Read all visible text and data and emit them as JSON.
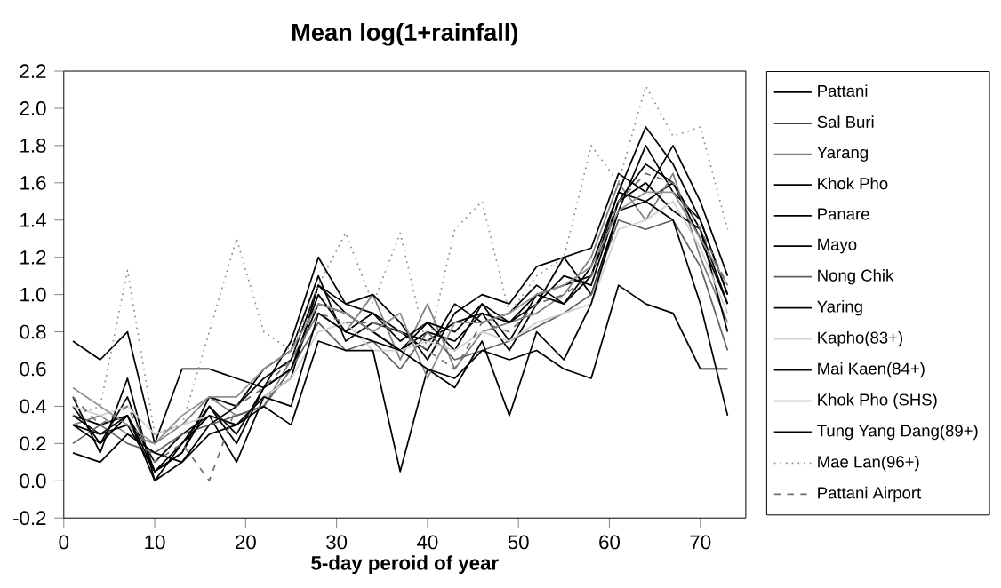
{
  "chart_data": {
    "type": "line",
    "title": "Mean log(1+rainfall)",
    "xlabel": "5-day peroid of year",
    "xlim": [
      0,
      75
    ],
    "xticks": [
      0,
      10,
      20,
      30,
      40,
      50,
      60,
      70
    ],
    "ylim": [
      -0.2,
      2.2
    ],
    "yticks": [
      {
        "value": -0.2,
        "label": "-0.2"
      },
      {
        "value": 0,
        "label": "0.0"
      },
      {
        "value": 0.2,
        "label": "0.2"
      },
      {
        "value": 0.4,
        "label": "0.4"
      },
      {
        "value": 0.6,
        "label": "0.6"
      },
      {
        "value": 0.8,
        "label": "0.8"
      },
      {
        "value": 1.0,
        "label": "1.0"
      },
      {
        "value": 1.2,
        "label": "1.2"
      },
      {
        "value": 1.4,
        "label": "1.4"
      },
      {
        "value": 1.6,
        "label": "1.6"
      },
      {
        "value": 1.8,
        "label": "1.8"
      },
      {
        "value": 2.0,
        "label": "2.0"
      },
      {
        "value": 2.2,
        "label": "2.2"
      }
    ],
    "x": [
      1,
      4,
      7,
      10,
      13,
      16,
      19,
      22,
      25,
      28,
      31,
      34,
      37,
      40,
      43,
      46,
      49,
      52,
      55,
      58,
      61,
      64,
      67,
      70,
      73
    ],
    "legend": "right",
    "grid": false,
    "marker": "none",
    "line_style": "solid",
    "series": [
      {
        "name": "Pattani",
        "color": "#000000",
        "values": [
          0.4,
          0.2,
          0.45,
          0.05,
          0.15,
          0.4,
          0.25,
          0.5,
          0.6,
          0.95,
          0.9,
          0.8,
          0.7,
          0.85,
          0.7,
          0.95,
          0.75,
          1.0,
          1.05,
          1.1,
          1.55,
          1.5,
          1.6,
          1.3,
          0.95
        ]
      },
      {
        "name": "Sal Buri",
        "color": "#000000",
        "values": [
          0.35,
          0.3,
          0.35,
          0.1,
          0.25,
          0.35,
          0.1,
          0.45,
          0.55,
          1.05,
          0.95,
          0.9,
          0.8,
          0.75,
          0.85,
          0.9,
          0.7,
          0.95,
          1.2,
          1.0,
          1.45,
          1.8,
          1.55,
          1.4,
          1.0
        ]
      },
      {
        "name": "Yarang",
        "color": "#808080",
        "values": [
          0.3,
          0.35,
          0.25,
          0.2,
          0.3,
          0.45,
          0.35,
          0.4,
          0.65,
          0.9,
          0.8,
          1.0,
          0.65,
          0.95,
          0.6,
          0.8,
          0.85,
          0.9,
          1.0,
          1.2,
          1.6,
          1.4,
          1.65,
          1.2,
          0.85
        ]
      },
      {
        "name": "Khok Pho",
        "color": "#000000",
        "values": [
          0.45,
          0.15,
          0.55,
          0.0,
          0.1,
          0.3,
          0.4,
          0.6,
          0.7,
          1.1,
          0.75,
          0.85,
          0.8,
          0.7,
          0.95,
          0.85,
          0.9,
          1.05,
          0.95,
          1.1,
          1.5,
          1.6,
          1.45,
          1.35,
          0.8
        ]
      },
      {
        "name": "Panare",
        "color": "#000000",
        "values": [
          0.75,
          0.65,
          0.8,
          0.2,
          0.6,
          0.6,
          0.55,
          0.5,
          0.75,
          1.2,
          0.95,
          1.0,
          0.85,
          0.65,
          0.9,
          1.0,
          0.95,
          1.15,
          1.2,
          1.25,
          1.65,
          1.55,
          1.8,
          1.5,
          1.1
        ]
      },
      {
        "name": "Mayo",
        "color": "#000000",
        "values": [
          0.35,
          0.25,
          0.3,
          0.05,
          0.15,
          0.45,
          0.4,
          0.55,
          0.65,
          1.05,
          0.9,
          0.8,
          0.7,
          0.8,
          0.75,
          0.9,
          0.85,
          1.0,
          0.95,
          1.15,
          1.55,
          1.9,
          1.7,
          1.4,
          1.0
        ]
      },
      {
        "name": "Nong Chik",
        "color": "#606060",
        "values": [
          0.2,
          0.3,
          0.2,
          0.15,
          0.25,
          0.3,
          0.35,
          0.4,
          0.6,
          0.85,
          0.7,
          0.75,
          0.6,
          0.8,
          0.65,
          0.7,
          0.75,
          null,
          0.9,
          1.0,
          1.4,
          1.35,
          1.4,
          1.15,
          0.7
        ]
      },
      {
        "name": "Yaring",
        "color": "#000000",
        "values": [
          0.3,
          0.2,
          0.35,
          0.0,
          0.2,
          0.4,
          0.2,
          0.5,
          0.6,
          1.0,
          0.8,
          0.9,
          0.75,
          0.85,
          0.8,
          0.95,
          0.85,
          0.95,
          1.1,
          1.05,
          1.5,
          1.7,
          1.6,
          1.35,
          0.95
        ]
      },
      {
        "name": "Kapho(83+)",
        "color": "#d0d0d0",
        "values": [
          0.4,
          0.35,
          0.4,
          0.25,
          0.3,
          0.35,
          0.3,
          0.45,
          0.55,
          0.8,
          0.85,
          0.7,
          0.7,
          0.75,
          0.7,
          0.8,
          0.75,
          0.85,
          0.9,
          0.95,
          1.35,
          1.4,
          1.5,
          1.25,
          0.9
        ]
      },
      {
        "name": "Mai Kaen(84+)",
        "color": "#000000",
        "values": [
          0.15,
          0.1,
          0.25,
          0.15,
          0.1,
          0.25,
          0.3,
          0.4,
          0.3,
          0.75,
          0.7,
          0.7,
          0.05,
          0.6,
          0.5,
          0.75,
          0.35,
          0.8,
          0.65,
          0.95,
          1.45,
          1.5,
          1.4,
          0.95,
          0.35
        ]
      },
      {
        "name": "Khok Pho (SHS)",
        "color": "#909090",
        "values": [
          0.5,
          0.4,
          0.3,
          0.2,
          0.35,
          0.45,
          0.45,
          0.6,
          0.7,
          0.95,
          0.9,
          0.8,
          0.9,
          0.55,
          0.85,
          0.85,
          0.9,
          1.0,
          1.05,
          1.15,
          1.45,
          1.55,
          1.55,
          1.3,
          1.05
        ]
      },
      {
        "name": "Tung Yang Dang(89+)",
        "color": "#000000",
        "values": [
          0.3,
          0.25,
          0.35,
          0.05,
          0.2,
          0.35,
          0.3,
          0.45,
          0.4,
          0.9,
          0.8,
          0.75,
          0.7,
          0.6,
          0.55,
          0.7,
          0.65,
          0.7,
          0.6,
          0.55,
          1.05,
          0.95,
          0.9,
          0.6,
          0.6
        ]
      },
      {
        "name": "Mae Lan(96+)",
        "color": "#909090",
        "line_style": "dotted",
        "values": [
          0.35,
          0.4,
          1.13,
          0.25,
          0.3,
          0.8,
          1.3,
          0.8,
          0.7,
          1.05,
          1.33,
          0.95,
          1.33,
          0.7,
          1.35,
          1.5,
          0.9,
          1.1,
          1.2,
          1.8,
          1.6,
          2.12,
          1.85,
          1.9,
          1.35
        ]
      },
      {
        "name": "Pattani Airport",
        "color": "#707070",
        "line_style": "dashed",
        "values": [
          0.45,
          0.3,
          0.4,
          0.1,
          0.2,
          0.0,
          0.4,
          0.5,
          0.65,
          0.9,
          0.85,
          0.85,
          0.8,
          0.7,
          0.6,
          0.85,
          0.8,
          0.95,
          1.0,
          1.1,
          1.5,
          1.65,
          1.6,
          1.35,
          1.05
        ]
      }
    ]
  }
}
